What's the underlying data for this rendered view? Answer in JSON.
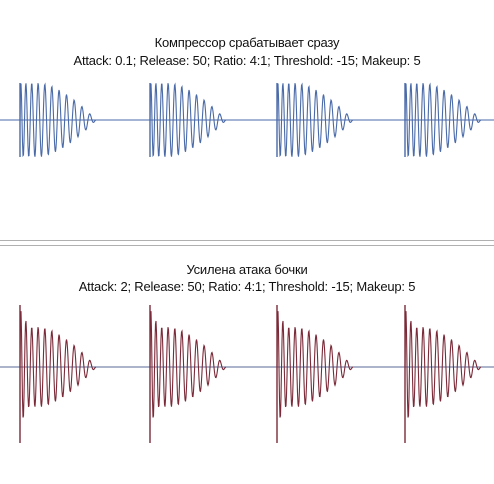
{
  "top_panel": {
    "title": "Компрессор срабатывает сразу",
    "params": "Attack: 0.1; Release: 50; Ratio: 4:1; Threshold: -15; Makeup: 5",
    "wave_color": "#4a6aa8",
    "baseline_color": "#4a6aa8",
    "attack_peak": 0.0
  },
  "bottom_panel": {
    "title": "Усилена атака бочки",
    "params": "Attack: 2; Release: 50; Ratio: 4:1; Threshold: -15; Makeup: 5",
    "wave_color": "#7a2a38",
    "baseline_color": "#5a6a9a",
    "attack_peak": 1.0
  },
  "hits_per_panel": 4
}
